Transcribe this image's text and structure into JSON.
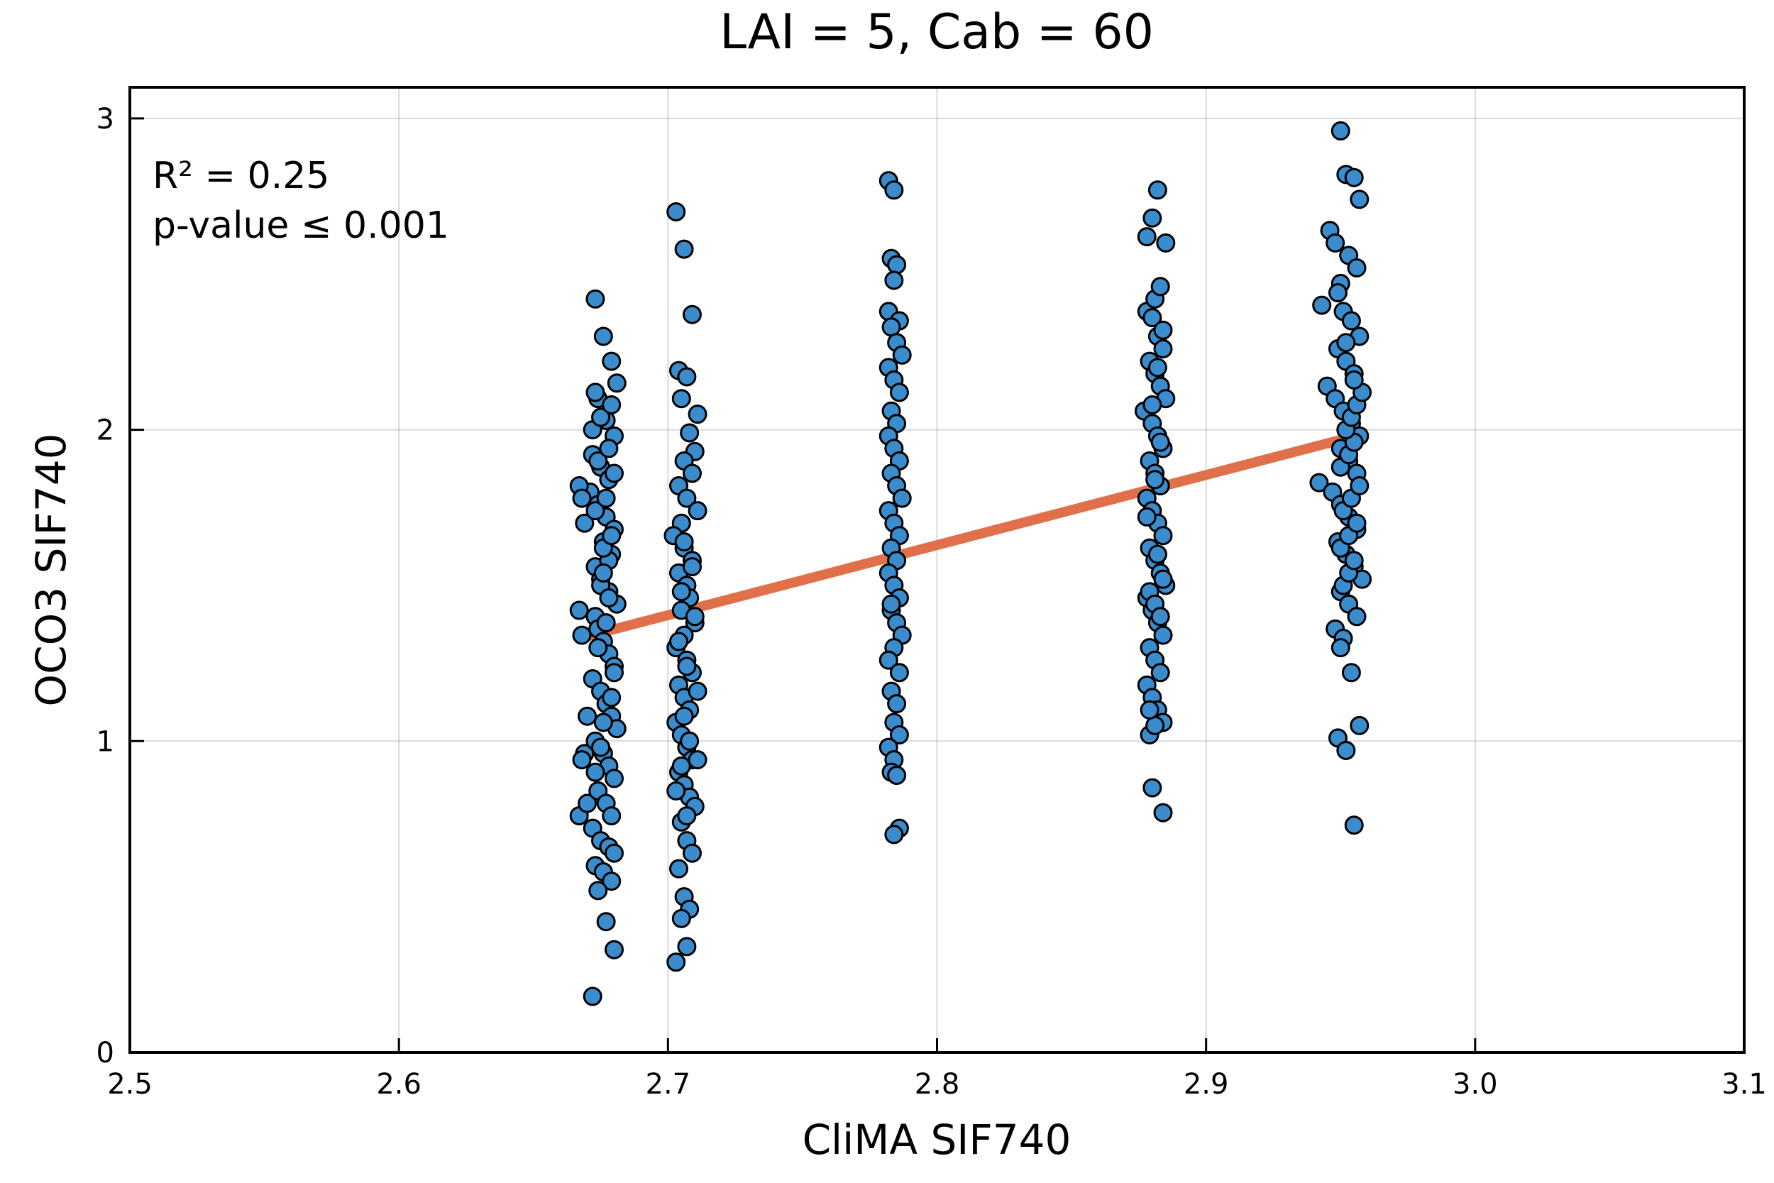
{
  "chart_data": {
    "type": "scatter",
    "title": "LAI = 5, Cab = 60",
    "xlabel": "CliMA SIF740",
    "ylabel": "OCO3 SIF740",
    "xlim": [
      2.5,
      3.1
    ],
    "ylim": [
      0,
      3.1
    ],
    "xticks": [
      2.5,
      2.6,
      2.7,
      2.8,
      2.9,
      3.0,
      3.1
    ],
    "xtick_labels": [
      "2.5",
      "2.6",
      "2.7",
      "2.8",
      "2.9",
      "3.0",
      "3.1"
    ],
    "yticks": [
      0,
      1,
      2,
      3
    ],
    "ytick_labels": [
      "0",
      "1",
      "2",
      "3"
    ],
    "grid": true,
    "legend": "none",
    "annotations": [
      "R² = 0.25",
      "p-value ≤ 0.001"
    ],
    "colors": {
      "points": "#3a8ccd",
      "point_edge": "#000000",
      "fit_line": "#e0704a"
    },
    "series": [
      {
        "kind": "points",
        "x": [
          2.673,
          2.676,
          2.679,
          2.681,
          2.674,
          2.677,
          2.68,
          2.672,
          2.675,
          2.678,
          2.671,
          2.674,
          2.677,
          2.68,
          2.676,
          2.679,
          2.673,
          2.675,
          2.678,
          2.681,
          2.667,
          2.668,
          2.669,
          2.667,
          2.668,
          2.67,
          2.669,
          2.668,
          2.667,
          2.67,
          2.673,
          2.674,
          2.676,
          2.678,
          2.68,
          2.672,
          2.675,
          2.677,
          2.679,
          2.681,
          2.673,
          2.676,
          2.678,
          2.68,
          2.674,
          2.677,
          2.679,
          2.672,
          2.675,
          2.678,
          2.68,
          2.673,
          2.676,
          2.679,
          2.674,
          2.677,
          2.68,
          2.672,
          2.675,
          2.678,
          2.676,
          2.679,
          2.673,
          2.677,
          2.68,
          2.674,
          2.678,
          2.672,
          2.675,
          2.679,
          2.673,
          2.676,
          2.678,
          2.677,
          2.674,
          2.68,
          2.679,
          2.676,
          2.675,
          2.673,
          2.703,
          2.706,
          2.709,
          2.704,
          2.707,
          2.711,
          2.705,
          2.708,
          2.71,
          2.706,
          2.709,
          2.704,
          2.707,
          2.711,
          2.705,
          2.702,
          2.706,
          2.709,
          2.704,
          2.707,
          2.708,
          2.705,
          2.71,
          2.706,
          2.703,
          2.707,
          2.709,
          2.704,
          2.706,
          2.708,
          2.703,
          2.705,
          2.707,
          2.709,
          2.711,
          2.704,
          2.706,
          2.708,
          2.71,
          2.705,
          2.707,
          2.709,
          2.704,
          2.706,
          2.708,
          2.705,
          2.707,
          2.703,
          2.706,
          2.709,
          2.705,
          2.71,
          2.704,
          2.707,
          2.711,
          2.706,
          2.708,
          2.705,
          2.703,
          2.707,
          2.782,
          2.784,
          2.783,
          2.785,
          2.784,
          2.782,
          2.786,
          2.783,
          2.785,
          2.787,
          2.782,
          2.784,
          2.786,
          2.783,
          2.785,
          2.782,
          2.784,
          2.786,
          2.783,
          2.785,
          2.787,
          2.782,
          2.784,
          2.786,
          2.783,
          2.785,
          2.782,
          2.784,
          2.786,
          2.783,
          2.785,
          2.787,
          2.784,
          2.782,
          2.786,
          2.783,
          2.785,
          2.784,
          2.786,
          2.782,
          2.784,
          2.783,
          2.785,
          2.786,
          2.784,
          2.783,
          2.878,
          2.88,
          2.882,
          2.884,
          2.879,
          2.881,
          2.883,
          2.885,
          2.877,
          2.88,
          2.882,
          2.884,
          2.879,
          2.881,
          2.883,
          2.878,
          2.88,
          2.882,
          2.884,
          2.879,
          2.881,
          2.883,
          2.885,
          2.878,
          2.88,
          2.882,
          2.884,
          2.879,
          2.881,
          2.883,
          2.878,
          2.88,
          2.882,
          2.884,
          2.879,
          2.881,
          2.883,
          2.885,
          2.878,
          2.88,
          2.882,
          2.884,
          2.879,
          2.881,
          2.883,
          2.88,
          2.884,
          2.882,
          2.878,
          2.881,
          2.883,
          2.88,
          2.882,
          2.884,
          2.881,
          2.879,
          2.95,
          2.952,
          2.955,
          2.957,
          2.946,
          2.948,
          2.953,
          2.956,
          2.95,
          2.943,
          2.951,
          2.954,
          2.957,
          2.949,
          2.952,
          2.955,
          2.945,
          2.948,
          2.951,
          2.954,
          2.957,
          2.95,
          2.953,
          2.956,
          2.942,
          2.947,
          2.95,
          2.953,
          2.956,
          2.949,
          2.952,
          2.955,
          2.958,
          2.95,
          2.953,
          2.956,
          2.948,
          2.951,
          2.954,
          2.957,
          2.949,
          2.952,
          2.955,
          2.95,
          2.953,
          2.956,
          2.951,
          2.954,
          2.957,
          2.95,
          2.953,
          2.955,
          2.952,
          2.954,
          2.956,
          2.958,
          2.951,
          2.953,
          2.955,
          2.949,
          2.952,
          2.955,
          2.95
        ],
        "y": [
          2.42,
          2.3,
          2.22,
          2.15,
          2.1,
          2.03,
          1.98,
          1.92,
          1.88,
          1.84,
          1.8,
          1.76,
          1.72,
          1.68,
          1.64,
          1.6,
          1.56,
          1.52,
          1.48,
          1.44,
          1.82,
          1.78,
          1.7,
          1.42,
          1.34,
          1.08,
          0.96,
          0.94,
          0.76,
          0.8,
          1.4,
          1.36,
          1.32,
          1.28,
          1.24,
          1.2,
          1.16,
          1.12,
          1.08,
          1.04,
          1.0,
          0.96,
          0.92,
          0.88,
          0.84,
          0.8,
          0.76,
          0.72,
          0.68,
          0.66,
          0.64,
          0.6,
          0.58,
          0.55,
          0.52,
          0.42,
          0.33,
          0.18,
          1.5,
          1.58,
          1.62,
          1.66,
          1.74,
          1.78,
          1.86,
          1.9,
          1.94,
          2.0,
          2.04,
          2.08,
          2.12,
          1.54,
          1.46,
          1.38,
          1.3,
          1.22,
          1.14,
          1.06,
          0.98,
          0.9,
          2.7,
          2.58,
          2.37,
          2.19,
          2.17,
          2.05,
          2.1,
          1.99,
          1.93,
          1.9,
          1.86,
          1.82,
          1.78,
          1.74,
          1.7,
          1.66,
          1.62,
          1.58,
          1.54,
          1.5,
          1.46,
          1.42,
          1.38,
          1.34,
          1.3,
          1.26,
          1.22,
          1.18,
          1.14,
          1.1,
          1.06,
          1.02,
          0.98,
          0.94,
          0.94,
          0.9,
          0.86,
          0.82,
          0.79,
          0.74,
          0.68,
          0.64,
          0.59,
          0.5,
          0.46,
          0.43,
          0.34,
          0.29,
          1.64,
          1.56,
          1.48,
          1.4,
          1.32,
          1.24,
          1.16,
          1.08,
          1.0,
          0.92,
          0.84,
          0.76,
          2.8,
          2.77,
          2.55,
          2.53,
          2.48,
          2.38,
          2.35,
          2.33,
          2.28,
          2.24,
          2.2,
          2.16,
          2.12,
          2.06,
          2.02,
          1.98,
          1.94,
          1.9,
          1.86,
          1.82,
          1.78,
          1.74,
          1.7,
          1.66,
          1.62,
          1.58,
          1.54,
          1.5,
          1.46,
          1.42,
          1.38,
          1.34,
          1.3,
          1.26,
          1.22,
          1.16,
          1.12,
          1.06,
          1.02,
          0.98,
          0.94,
          0.9,
          0.89,
          0.72,
          0.7,
          1.44,
          2.38,
          2.36,
          2.3,
          2.26,
          2.22,
          2.18,
          2.14,
          2.1,
          2.06,
          2.02,
          1.98,
          1.94,
          1.9,
          1.86,
          1.82,
          1.78,
          1.74,
          1.7,
          1.66,
          1.62,
          1.58,
          1.54,
          1.5,
          1.46,
          1.42,
          1.38,
          1.34,
          1.3,
          1.26,
          1.22,
          1.18,
          1.14,
          1.1,
          1.06,
          1.02,
          2.42,
          2.46,
          2.6,
          2.62,
          2.68,
          2.77,
          1.52,
          1.48,
          1.44,
          1.4,
          0.85,
          0.77,
          1.6,
          1.72,
          1.84,
          1.96,
          2.08,
          2.2,
          2.32,
          1.05,
          1.1,
          2.96,
          2.82,
          2.81,
          2.74,
          2.64,
          2.6,
          2.56,
          2.52,
          2.47,
          2.4,
          2.38,
          2.35,
          2.3,
          2.26,
          2.22,
          2.18,
          2.14,
          2.1,
          2.06,
          2.02,
          1.98,
          1.94,
          1.9,
          1.86,
          1.83,
          1.8,
          1.76,
          1.72,
          1.68,
          1.64,
          1.6,
          1.56,
          1.52,
          1.48,
          1.44,
          1.4,
          1.36,
          1.33,
          1.22,
          1.05,
          1.01,
          0.97,
          0.73,
          1.62,
          1.66,
          1.7,
          1.74,
          1.78,
          1.82,
          1.88,
          1.92,
          1.96,
          2.0,
          2.04,
          2.08,
          2.12,
          1.5,
          1.54,
          1.58,
          2.44,
          2.28,
          2.16,
          1.3
        ]
      },
      {
        "kind": "line",
        "x": [
          2.667,
          2.96
        ],
        "y": [
          1.33,
          1.99
        ]
      }
    ]
  }
}
